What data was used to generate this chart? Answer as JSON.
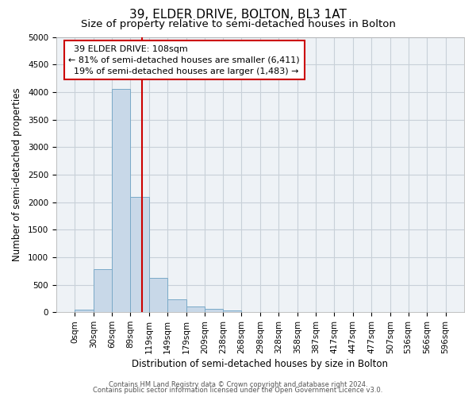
{
  "title": "39, ELDER DRIVE, BOLTON, BL3 1AT",
  "subtitle": "Size of property relative to semi-detached houses in Bolton",
  "xlabel": "Distribution of semi-detached houses by size in Bolton",
  "ylabel": "Number of semi-detached properties",
  "footnote1": "Contains HM Land Registry data © Crown copyright and database right 2024.",
  "footnote2": "Contains public sector information licensed under the Open Government Licence v3.0.",
  "property_label": "39 ELDER DRIVE: 108sqm",
  "pct_smaller": 81,
  "pct_larger": 19,
  "count_smaller": "6,411",
  "count_larger": "1,483",
  "bin_edges": [
    0,
    30,
    60,
    89,
    119,
    149,
    179,
    209,
    238,
    268,
    298,
    328,
    358,
    387,
    417,
    447,
    477,
    507,
    536,
    566,
    596
  ],
  "bar_heights": [
    50,
    780,
    4060,
    2100,
    630,
    230,
    100,
    55,
    30,
    0,
    0,
    0,
    0,
    0,
    0,
    0,
    0,
    0,
    0,
    0
  ],
  "bar_color": "#c8d8e8",
  "bar_edgecolor": "#7aaac8",
  "vline_x": 108,
  "vline_color": "#cc0000",
  "annotation_box_edgecolor": "#cc0000",
  "ylim": [
    0,
    5000
  ],
  "yticks": [
    0,
    500,
    1000,
    1500,
    2000,
    2500,
    3000,
    3500,
    4000,
    4500,
    5000
  ],
  "grid_color": "#c8d0d8",
  "background_color": "#eef2f6",
  "title_fontsize": 11,
  "subtitle_fontsize": 9.5,
  "axis_label_fontsize": 8.5,
  "tick_fontsize": 7.5,
  "annotation_fontsize": 8,
  "footnote_fontsize": 6
}
